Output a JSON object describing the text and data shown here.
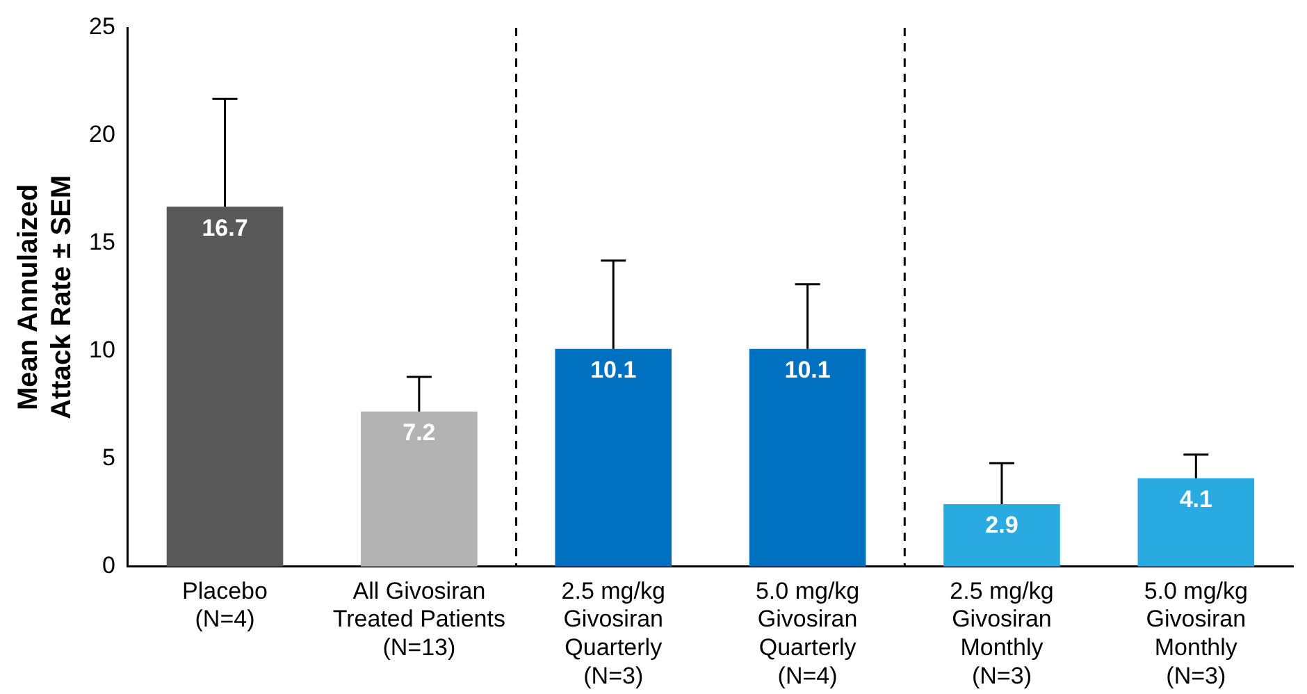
{
  "chart_data": {
    "type": "bar",
    "ylabel": "Mean Annulaized\nAttack Rate ± SEM",
    "categories": [
      "Placebo\n(N=4)",
      "All Givosiran\nTreated Patients\n(N=13)",
      "2.5 mg/kg\nGivosiran\nQuarterly\n(N=3)",
      "5.0 mg/kg\nGivosiran\nQuarterly\n(N=4)",
      "2.5 mg/kg\nGivosiran\nMonthly\n(N=3)",
      "5.0 mg/kg\nGivosiran\nMonthly\n(N=3)"
    ],
    "values": [
      16.7,
      7.2,
      10.1,
      10.1,
      2.9,
      4.1
    ],
    "colors": [
      "#595959",
      "#b3b3b3",
      "#0070c0",
      "#0070c0",
      "#29abe2",
      "#29abe2"
    ],
    "errors": [
      [
        16.7,
        21.7
      ],
      [
        7.2,
        8.8
      ],
      [
        10.1,
        14.2
      ],
      [
        10.1,
        13.1
      ],
      [
        2.9,
        4.8
      ],
      [
        4.1,
        5.2
      ]
    ],
    "ylim": [
      0,
      25
    ],
    "yticks": [
      0,
      5,
      10,
      15,
      20,
      25
    ],
    "grid": false,
    "data_labels": true
  }
}
